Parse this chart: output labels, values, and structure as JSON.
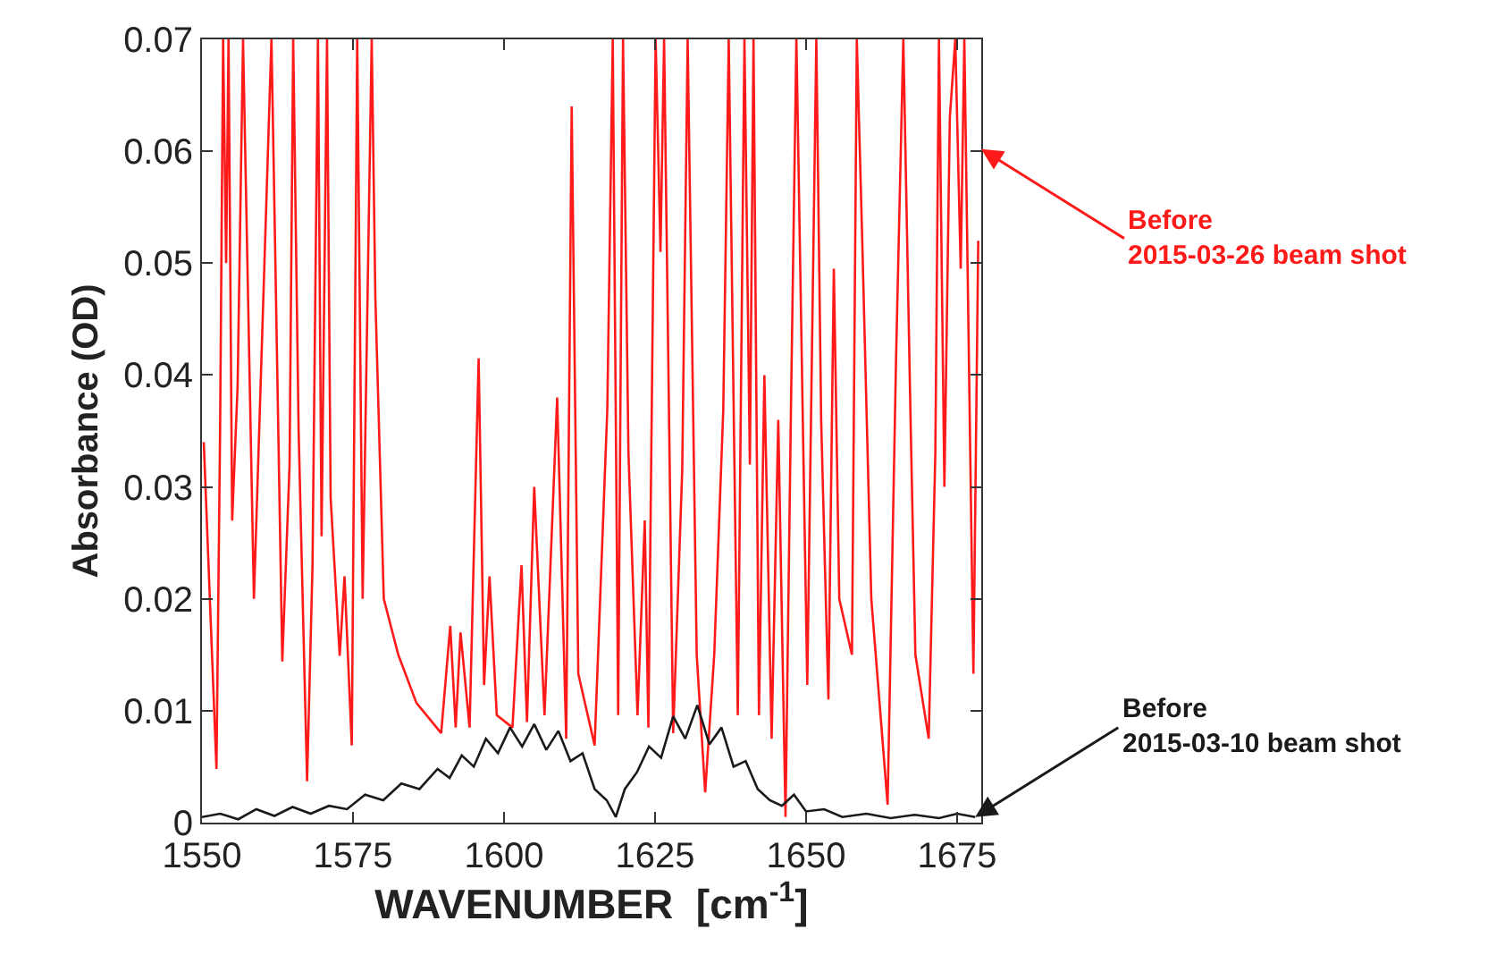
{
  "chart_data": {
    "type": "line",
    "xlabel": "WAVENUMBER  [cm$^{-1}$]",
    "ylabel": "Absorbance (OD)",
    "xlim": [
      1550,
      1679
    ],
    "xticks": [
      1550,
      1575,
      1600,
      1625,
      1650,
      1675
    ],
    "ylim": [
      0,
      0.07
    ],
    "yticks": [
      0,
      0.01,
      0.02,
      0.03,
      0.04,
      0.05,
      0.06,
      0.07
    ],
    "marker": "none",
    "line_style": "solid",
    "series": [
      {
        "color": "#ff1a1a",
        "x": [
          1550.3,
          1552.4,
          1553.0,
          1553.5,
          1554.0,
          1554.4,
          1555.0,
          1555.9,
          1556.8,
          1558.6,
          1561.5,
          1561.8,
          1563.3,
          1564.5,
          1565.1,
          1566.0,
          1567.4,
          1568.3,
          1569.2,
          1569.8,
          1570.7,
          1571.3,
          1572.8,
          1573.6,
          1574.8,
          1575.7,
          1576.6,
          1578.1,
          1578.7,
          1580.1,
          1582.5,
          1585.5,
          1589.6,
          1591.1,
          1592.0,
          1592.8,
          1594.3,
          1595.8,
          1596.7,
          1597.6,
          1598.8,
          1601.4,
          1602.9,
          1603.8,
          1605.0,
          1606.7,
          1608.8,
          1610.3,
          1611.2,
          1612.3,
          1615.0,
          1617.1,
          1618.0,
          1618.9,
          1619.7,
          1620.6,
          1622.1,
          1623.3,
          1623.9,
          1625.1,
          1625.9,
          1626.5,
          1628.0,
          1629.5,
          1630.4,
          1631.9,
          1633.3,
          1634.8,
          1636.3,
          1637.2,
          1638.7,
          1639.8,
          1640.7,
          1641.3,
          1642.2,
          1643.1,
          1644.3,
          1645.4,
          1646.6,
          1647.5,
          1648.4,
          1650.2,
          1651.7,
          1652.5,
          1653.7,
          1654.6,
          1655.5,
          1657.6,
          1658.4,
          1659.3,
          1660.8,
          1663.5,
          1664.9,
          1666.1,
          1667.3,
          1668.1,
          1670.3,
          1671.4,
          1672.0,
          1672.9,
          1673.8,
          1674.7,
          1675.6,
          1676.2,
          1677.7,
          1678.5
        ],
        "values": [
          0.034,
          0.0048,
          0.035,
          0.07,
          0.05,
          0.07,
          0.027,
          0.039,
          0.07,
          0.02,
          0.07,
          0.061,
          0.0144,
          0.032,
          0.07,
          0.035,
          0.0037,
          0.023,
          0.07,
          0.0256,
          0.07,
          0.029,
          0.0149,
          0.022,
          0.0069,
          0.07,
          0.02,
          0.07,
          0.047,
          0.02,
          0.015,
          0.0107,
          0.008,
          0.0176,
          0.0085,
          0.017,
          0.0085,
          0.0415,
          0.0123,
          0.022,
          0.0096,
          0.0085,
          0.023,
          0.009,
          0.03,
          0.0096,
          0.038,
          0.0075,
          0.064,
          0.0133,
          0.0069,
          0.037,
          0.07,
          0.0096,
          0.07,
          0.033,
          0.0096,
          0.027,
          0.0085,
          0.07,
          0.051,
          0.07,
          0.008,
          0.0315,
          0.07,
          0.015,
          0.0027,
          0.015,
          0.037,
          0.07,
          0.0096,
          0.07,
          0.032,
          0.07,
          0.0096,
          0.04,
          0.0075,
          0.036,
          0.0005,
          0.037,
          0.07,
          0.0123,
          0.07,
          0.036,
          0.011,
          0.0495,
          0.02,
          0.015,
          0.07,
          0.052,
          0.02,
          0.0016,
          0.0415,
          0.07,
          0.036,
          0.015,
          0.0075,
          0.033,
          0.07,
          0.03,
          0.063,
          0.07,
          0.0495,
          0.07,
          0.0133,
          0.052
        ]
      },
      {
        "color": "#1a1a1a",
        "x": [
          1550,
          1553,
          1556,
          1559,
          1562,
          1565,
          1568,
          1571,
          1574,
          1577,
          1580,
          1583,
          1586,
          1589,
          1591,
          1593,
          1595,
          1597,
          1599,
          1601,
          1603,
          1605,
          1607,
          1609,
          1611,
          1613,
          1615,
          1617,
          1618.5,
          1620,
          1622,
          1624,
          1626,
          1628,
          1630,
          1632,
          1634,
          1636,
          1638,
          1640,
          1642,
          1644,
          1646,
          1648,
          1650,
          1653,
          1656,
          1660,
          1664,
          1668,
          1672,
          1675,
          1678
        ],
        "values": [
          0.0005,
          0.0008,
          0.0003,
          0.0012,
          0.0006,
          0.0014,
          0.0008,
          0.0015,
          0.0012,
          0.0025,
          0.002,
          0.0035,
          0.003,
          0.0048,
          0.004,
          0.006,
          0.005,
          0.0075,
          0.0062,
          0.0085,
          0.0068,
          0.0088,
          0.0065,
          0.0082,
          0.0055,
          0.0062,
          0.003,
          0.002,
          0.0005,
          0.003,
          0.0045,
          0.0068,
          0.0058,
          0.0095,
          0.0075,
          0.0105,
          0.007,
          0.0085,
          0.005,
          0.0055,
          0.003,
          0.002,
          0.0015,
          0.0025,
          0.001,
          0.0012,
          0.0005,
          0.0008,
          0.0004,
          0.0007,
          0.0004,
          0.0008,
          0.0005
        ]
      }
    ],
    "annotations": [
      "Before\n2015-03-26 beam shot",
      {
        "text": "Before\n2015-03-10 beam shot",
        "x": 1678,
        "y": 0.0005
      }
    ]
  }
}
